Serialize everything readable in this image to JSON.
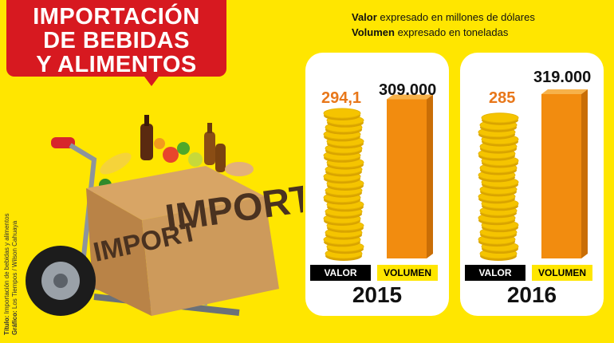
{
  "header": {
    "title_lines": [
      "IMPORTACIÓN",
      "DE BEBIDAS",
      "Y ALIMENTOS"
    ]
  },
  "legend": {
    "valor_key": "Valor",
    "valor_text": "expresado en millones de dólares",
    "volumen_key": "Volumen",
    "volumen_text": "expresado en toneladas"
  },
  "illustration": {
    "box_text": "IMPORT"
  },
  "credits": {
    "titulo_key": "Título:",
    "titulo_text": "Importación de bebidas y alimentos",
    "grafico_key": "Gráfico:",
    "grafico_text": "Los Tiempos / Wilson Cahuaya"
  },
  "colors": {
    "background": "#ffe600",
    "title_red": "#d71920",
    "value_orange": "#e8771a",
    "bar_orange": "#f28c0f",
    "coin_gold": "#f5c400"
  },
  "chart_data": [
    {
      "type": "bar",
      "title": "2015",
      "categories": [
        "VALOR",
        "VOLUMEN"
      ],
      "values": [
        294.1,
        309000
      ],
      "value_labels": [
        "294,1",
        "309.000"
      ],
      "units": [
        "millones de dólares",
        "toneladas"
      ]
    },
    {
      "type": "bar",
      "title": "2016",
      "categories": [
        "VALOR",
        "VOLUMEN"
      ],
      "values": [
        285,
        319000
      ],
      "value_labels": [
        "285",
        "319.000"
      ],
      "units": [
        "millones de dólares",
        "toneladas"
      ]
    }
  ]
}
